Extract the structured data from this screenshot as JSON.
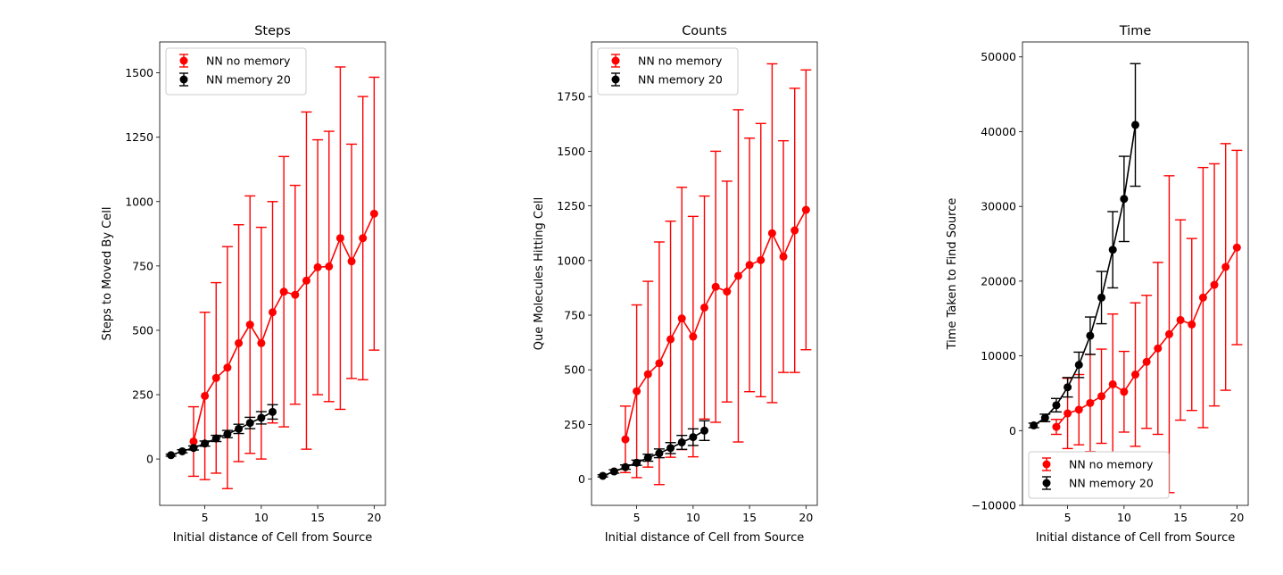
{
  "colors": {
    "no_memory": "#ff0000",
    "memory": "#000000",
    "axis": "#000000"
  },
  "chart_data": [
    {
      "type": "line",
      "title": "Steps",
      "xlabel": "Initial distance of Cell from Source",
      "ylabel": "Steps to Moved By Cell",
      "xlim": [
        1,
        21
      ],
      "ylim": [
        -180,
        1620
      ],
      "xticks": [
        5,
        10,
        15,
        20
      ],
      "yticks": [
        0,
        250,
        500,
        750,
        1000,
        1250,
        1500
      ],
      "ytick_labels": [
        "0",
        "250",
        "500",
        "750",
        "1000",
        "1250",
        "1500"
      ],
      "legend": "upper-left",
      "series": [
        {
          "name": "NN no memory",
          "color": "#ff0000",
          "x": [
            4,
            5,
            6,
            7,
            8,
            9,
            10,
            11,
            12,
            13,
            14,
            15,
            16,
            17,
            18,
            19,
            20
          ],
          "y": [
            68,
            245,
            315,
            355,
            450,
            522,
            450,
            570,
            650,
            638,
            693,
            745,
            748,
            858,
            768,
            858,
            953
          ],
          "err": [
            135,
            325,
            370,
            470,
            460,
            500,
            450,
            430,
            525,
            425,
            655,
            495,
            525,
            665,
            455,
            550,
            530
          ]
        },
        {
          "name": "NN memory 20",
          "color": "#000000",
          "x": [
            2,
            3,
            4,
            5,
            6,
            7,
            8,
            9,
            10,
            11
          ],
          "y": [
            15,
            30,
            43,
            60,
            80,
            97,
            117,
            140,
            160,
            183
          ],
          "err": [
            4,
            6,
            8,
            10,
            12,
            14,
            18,
            22,
            24,
            28
          ]
        }
      ]
    },
    {
      "type": "line",
      "title": "Counts",
      "xlabel": "Initial distance of Cell from Source",
      "ylabel": "Que Molecules Hitting Cell",
      "xlim": [
        1,
        21
      ],
      "ylim": [
        -120,
        2000
      ],
      "xticks": [
        5,
        10,
        15,
        20
      ],
      "yticks": [
        0,
        250,
        500,
        750,
        1000,
        1250,
        1500,
        1750
      ],
      "ytick_labels": [
        "0",
        "250",
        "500",
        "750",
        "1000",
        "1250",
        "1500",
        "1750"
      ],
      "legend": "upper-left",
      "series": [
        {
          "name": "NN no memory",
          "color": "#ff0000",
          "x": [
            4,
            5,
            6,
            7,
            8,
            9,
            10,
            11,
            12,
            13,
            14,
            15,
            16,
            17,
            18,
            19,
            20
          ],
          "y": [
            182,
            402,
            480,
            530,
            640,
            735,
            652,
            785,
            880,
            858,
            930,
            980,
            1002,
            1125,
            1018,
            1138,
            1232
          ],
          "err": [
            152,
            395,
            425,
            555,
            540,
            600,
            550,
            510,
            620,
            505,
            760,
            580,
            625,
            775,
            530,
            650,
            640
          ]
        },
        {
          "name": "NN memory 20",
          "color": "#000000",
          "x": [
            2,
            3,
            4,
            5,
            6,
            7,
            8,
            9,
            10,
            11
          ],
          "y": [
            15,
            35,
            55,
            75,
            98,
            118,
            142,
            168,
            192,
            222
          ],
          "err": [
            5,
            8,
            10,
            12,
            16,
            20,
            25,
            32,
            38,
            45
          ]
        }
      ]
    },
    {
      "type": "line",
      "title": "Time",
      "xlabel": "Initial distance of Cell from Source",
      "ylabel": "Time Taken to Find Source",
      "xlim": [
        1,
        21
      ],
      "ylim": [
        -10000,
        52000
      ],
      "xticks": [
        5,
        10,
        15,
        20
      ],
      "yticks": [
        -10000,
        0,
        10000,
        20000,
        30000,
        40000,
        50000
      ],
      "ytick_labels": [
        "−10000",
        "0",
        "10000",
        "20000",
        "30000",
        "40000",
        "50000"
      ],
      "legend": "lower-left",
      "series": [
        {
          "name": "NN no memory",
          "color": "#ff0000",
          "x": [
            4,
            5,
            6,
            7,
            8,
            9,
            10,
            11,
            12,
            13,
            14,
            15,
            16,
            17,
            18,
            19,
            20
          ],
          "y": [
            500,
            2300,
            2800,
            3700,
            4600,
            6200,
            5200,
            7500,
            9200,
            11000,
            12900,
            14800,
            14200,
            17800,
            19500,
            21900,
            24500
          ],
          "err": [
            1000,
            4700,
            4700,
            6500,
            6300,
            9400,
            5400,
            9600,
            8900,
            11500,
            21200,
            13400,
            11500,
            17400,
            16200,
            16500,
            13000
          ]
        },
        {
          "name": "NN memory 20",
          "color": "#000000",
          "x": [
            2,
            3,
            4,
            5,
            6,
            7,
            8,
            9,
            10,
            11
          ],
          "y": [
            700,
            1700,
            3400,
            5800,
            8800,
            12700,
            17800,
            24200,
            31000,
            40900
          ],
          "err": [
            300,
            500,
            900,
            1300,
            1700,
            2500,
            3500,
            5100,
            5700,
            8200
          ]
        }
      ]
    }
  ]
}
